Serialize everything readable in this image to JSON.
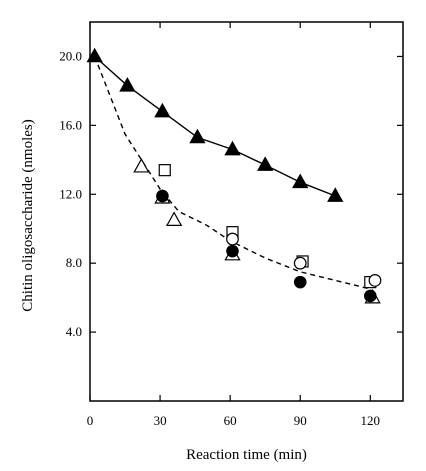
{
  "chart_data": {
    "type": "scatter",
    "title": "",
    "xlabel": "Reaction time (min)",
    "ylabel": "Chitin oligosaccharide (nmoles)",
    "xlim": [
      0,
      134
    ],
    "ylim": [
      0,
      22
    ],
    "x_ticks": [
      0,
      30,
      60,
      90,
      120
    ],
    "x_tick_labels": [
      "0",
      "30",
      "60",
      "90",
      "120"
    ],
    "y_ticks": [
      4,
      8,
      12,
      16,
      20
    ],
    "y_tick_labels": [
      "4.0",
      "8.0",
      "12.0",
      "16.0",
      "20.0"
    ],
    "grid": false,
    "series": [
      {
        "marker": "filled-triangle",
        "line": "solid",
        "x": [
          2,
          16,
          31,
          46,
          61,
          75,
          90,
          105
        ],
        "y": [
          20.0,
          18.3,
          16.8,
          15.3,
          14.6,
          13.7,
          12.7,
          11.9
        ]
      },
      {
        "marker": "open-triangle",
        "line": "none",
        "x": [
          22,
          31,
          36,
          61,
          121
        ],
        "y": [
          13.6,
          11.8,
          10.5,
          8.5,
          6.0
        ]
      },
      {
        "marker": "open-square",
        "line": "none",
        "x": [
          32,
          61,
          91,
          120
        ],
        "y": [
          13.4,
          9.8,
          8.1,
          6.9
        ]
      },
      {
        "marker": "open-circle",
        "line": "none",
        "x": [
          61,
          90,
          122
        ],
        "y": [
          9.4,
          8.0,
          7.0
        ]
      },
      {
        "marker": "filled-circle",
        "line": "none",
        "x": [
          31,
          61,
          90,
          120
        ],
        "y": [
          11.9,
          8.7,
          6.9,
          6.1
        ]
      },
      {
        "marker": "none",
        "line": "dashed",
        "x": [
          2,
          15,
          30,
          38,
          50,
          60,
          75,
          90,
          105,
          120
        ],
        "y": [
          20.0,
          15.5,
          12.3,
          11.0,
          10.2,
          9.3,
          8.3,
          7.5,
          7.0,
          6.5
        ]
      }
    ]
  }
}
